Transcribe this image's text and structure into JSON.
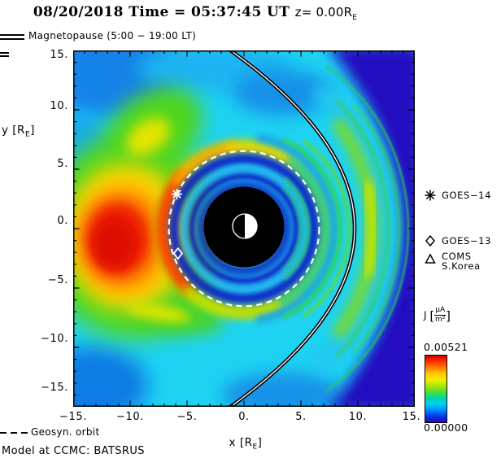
{
  "title": {
    "main": "08/20/2018 Time = 05:37:45 UT",
    "z_prefix": "z= 0.00R",
    "z_sub": "E"
  },
  "magnetopause_legend": {
    "label": "Magnetopause (5:00 − 19:00 LT)"
  },
  "axes": {
    "x": {
      "title_prefix": "x [R",
      "title_sub": "E",
      "title_suffix": "]",
      "tick_labels": [
        "−15.",
        "−10.",
        "−5.",
        "0.",
        "5.",
        "10.",
        "15."
      ]
    },
    "y": {
      "title_prefix": "y [R",
      "title_sub": "E",
      "title_suffix": "]",
      "tick_labels": [
        "15.",
        "10.",
        "5.",
        "0.",
        "−5.",
        "−10.",
        "−15."
      ]
    }
  },
  "satellite_legend": {
    "goes14": {
      "symbol": "asterisk",
      "label": "GOES−14"
    },
    "goes13": {
      "symbol": "diamond",
      "label": "GOES−13"
    },
    "coms": {
      "symbol": "triangle",
      "label": "COMS",
      "label2": "S.Korea"
    }
  },
  "colorbar": {
    "quantity": "J",
    "unit_numerator": "μA",
    "unit_denominator": "m²",
    "max_label": "0.00521",
    "min_label": "0.00000",
    "colors": [
      "#cf0000",
      "#ff2f00",
      "#ff8000",
      "#ffc900",
      "#f4ee00",
      "#a8e800",
      "#50dc38",
      "#00d8a8",
      "#00d0f2",
      "#008cff",
      "#0038e6",
      "#2a06c0"
    ]
  },
  "footer": {
    "orbit_label": "Geosyn. orbit",
    "model_label": "Model at CCMC: BATSRUS"
  },
  "chart_data": {
    "type": "heatmap",
    "title": "08/20/2018 Time = 05:37:45 UT z= 0.00RE",
    "xlabel": "x [RE]",
    "ylabel": "y [RE]",
    "xlim": [
      -15,
      15
    ],
    "ylim": [
      -15,
      15
    ],
    "x_ticks": [
      -15,
      -10,
      -5,
      0,
      5,
      10,
      15
    ],
    "y_ticks": [
      -15,
      -10,
      -5,
      0,
      5,
      10,
      15
    ],
    "grid": false,
    "colorbar": {
      "quantity": "J (current density)",
      "units": "μA/m²",
      "min": 0.0,
      "max": 0.00521,
      "palette": "rainbow"
    },
    "markers": [
      {
        "name": "GOES−14",
        "symbol": "asterisk",
        "x": -5.9,
        "y": 2.9
      },
      {
        "name": "GOES−13",
        "symbol": "diamond",
        "x": -5.8,
        "y": -2.1
      }
    ],
    "overlays": {
      "magnetopause": {
        "style": "black curve with white core",
        "standoff_x_re": 9.7,
        "lt_range": "5:00 − 19:00 LT"
      },
      "geosync_orbit": {
        "style": "white dashed circle",
        "radius_re": 6.6
      },
      "inner_boundary": {
        "style": "filled black disk",
        "radius_re": 3.5
      },
      "earth": {
        "style": "circle, dayside (+x) half white, nightside half black",
        "radius_re": 1.0
      }
    },
    "features": [
      "strong red/orange current density maximum in the nightside tail around x≈−11, y≈−1",
      "yellow-green halo around the nightside maximum extending toward the flanks",
      "concentric blue/cyan ring-current rings around Earth inside geosynchronous orbit",
      "bright yellow-green ring just outside the geosynchronous circle, red-orange on the nightside",
      "green magnetopause/bow-shock current layers on the dayside near x≈10–13",
      "dark indigo low-current solar wind region upstream of the bow shock on the right edge"
    ]
  }
}
